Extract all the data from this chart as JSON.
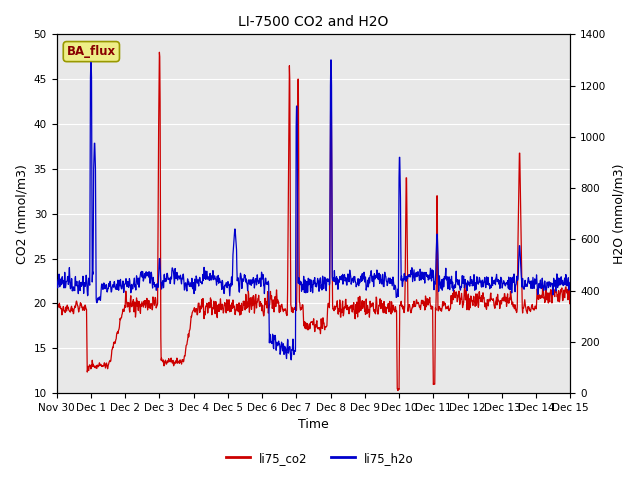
{
  "title": "LI-7500 CO2 and H2O",
  "xlabel": "Time",
  "ylabel_left": "CO2 (mmol/m3)",
  "ylabel_right": "H2O (mmol/m3)",
  "ylim_left": [
    10,
    50
  ],
  "ylim_right": [
    0,
    1400
  ],
  "yticks_left": [
    10,
    15,
    20,
    25,
    30,
    35,
    40,
    45,
    50
  ],
  "yticks_right": [
    0,
    200,
    400,
    600,
    800,
    1000,
    1200,
    1400
  ],
  "xtick_labels": [
    "Nov 30",
    "Dec 1",
    "Dec 2",
    "Dec 3",
    "Dec 4",
    "Dec 5",
    "Dec 6",
    "Dec 7",
    "Dec 8",
    "Dec 9",
    "Dec 10",
    "Dec 11",
    "Dec 12",
    "Dec 13",
    "Dec 14",
    "Dec 15"
  ],
  "legend_labels": [
    "li75_co2",
    "li75_h2o"
  ],
  "line_color_co2": "#cc0000",
  "line_color_h2o": "#0000cc",
  "ba_flux_label": "BA_flux",
  "ba_flux_bg": "#eeee88",
  "ba_flux_text_color": "#880000",
  "ba_flux_edge_color": "#999900",
  "plot_bg_color": "#e8e8e8",
  "fig_bg_color": "#ffffff",
  "grid_color": "#ffffff",
  "title_fontsize": 10,
  "axis_label_fontsize": 9,
  "tick_fontsize": 7.5,
  "legend_fontsize": 8.5
}
